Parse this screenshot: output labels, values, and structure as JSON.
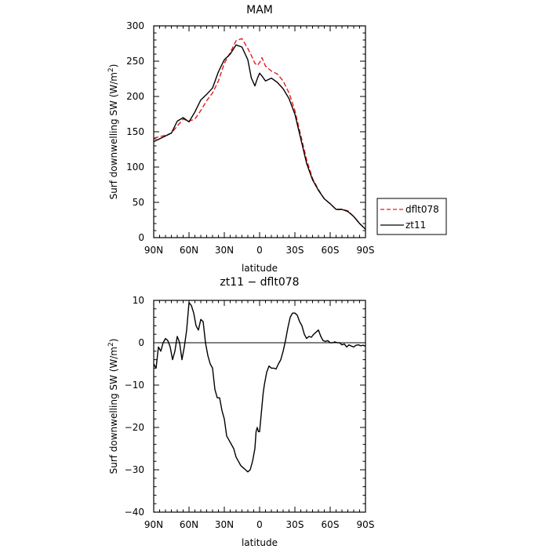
{
  "chart_data": [
    {
      "type": "line",
      "title": "MAM",
      "xlabel": "latitude",
      "ylabel": "Surf downwelling SW (W/m²)",
      "ylabel_main": "Surf downwelling SW (W/m",
      "ylabel_sup": "2",
      "ylabel_end": ")",
      "xlim": [
        90,
        -90
      ],
      "ylim": [
        0,
        300
      ],
      "xticks": [
        90,
        60,
        30,
        0,
        -30,
        -60,
        -90
      ],
      "xtick_labels": [
        "90N",
        "60N",
        "30N",
        "0",
        "30S",
        "60S",
        "90S"
      ],
      "yticks": [
        0,
        50,
        100,
        150,
        200,
        250,
        300
      ],
      "ytick_labels": [
        "0",
        "50",
        "100",
        "150",
        "200",
        "250",
        "300"
      ],
      "legend_position": "right",
      "series": [
        {
          "name": "dflt078",
          "color": "#e8191d",
          "dash": "dashed",
          "x": [
            90,
            85,
            80,
            75,
            70,
            65,
            60,
            55,
            50,
            45,
            40,
            35,
            30,
            25,
            20,
            15,
            10,
            7,
            4,
            2,
            0,
            -2,
            -5,
            -10,
            -15,
            -20,
            -25,
            -30,
            -35,
            -40,
            -45,
            -50,
            -55,
            -60,
            -65,
            -70,
            -75,
            -80,
            -85,
            -90
          ],
          "y": [
            141,
            143,
            145,
            148,
            158,
            168,
            165,
            168,
            180,
            194,
            205,
            222,
            247,
            262,
            279,
            282,
            268,
            258,
            247,
            244,
            248,
            255,
            243,
            236,
            232,
            222,
            205,
            180,
            145,
            110,
            84,
            68,
            55,
            48,
            40,
            40,
            38,
            30,
            20,
            12
          ]
        },
        {
          "name": "zt11",
          "color": "#000000",
          "dash": "solid",
          "x": [
            90,
            85,
            80,
            75,
            70,
            65,
            60,
            55,
            50,
            45,
            40,
            35,
            30,
            25,
            20,
            15,
            10,
            7,
            4,
            2,
            0,
            -2,
            -5,
            -10,
            -15,
            -20,
            -25,
            -30,
            -35,
            -40,
            -45,
            -50,
            -55,
            -60,
            -65,
            -70,
            -75,
            -80,
            -85,
            -90
          ],
          "y": [
            136,
            140,
            144,
            148,
            165,
            170,
            164,
            178,
            195,
            203,
            212,
            235,
            252,
            260,
            273,
            270,
            252,
            226,
            215,
            225,
            233,
            229,
            222,
            226,
            220,
            211,
            197,
            175,
            140,
            105,
            82,
            67,
            55,
            48,
            40,
            40,
            37,
            30,
            20,
            12
          ]
        }
      ]
    },
    {
      "type": "line",
      "title": "zt11 − dflt078",
      "xlabel": "latitude",
      "ylabel": "Surf downwelling SW (W/m²)",
      "ylabel_main": "Surf downwelling SW (W/m",
      "ylabel_sup": "2",
      "ylabel_end": ")",
      "xlim": [
        90,
        -90
      ],
      "ylim": [
        -40,
        10
      ],
      "xticks": [
        90,
        60,
        30,
        0,
        -30,
        -60,
        -90
      ],
      "xtick_labels": [
        "90N",
        "60N",
        "30N",
        "0",
        "30S",
        "60S",
        "90S"
      ],
      "yticks": [
        -40,
        -30,
        -20,
        -10,
        0,
        10
      ],
      "ytick_labels": [
        "−40",
        "−30",
        "−20",
        "−10",
        "0",
        "10"
      ],
      "zero_line": true,
      "series": [
        {
          "name": "",
          "color": "#000000",
          "dash": "solid",
          "x": [
            90,
            88,
            86,
            84,
            82,
            80,
            78,
            76,
            74,
            72,
            70,
            68,
            66,
            64,
            62,
            60,
            58,
            56,
            54,
            52,
            50,
            48,
            46,
            44,
            42,
            40,
            38,
            36,
            34,
            32,
            30,
            28,
            26,
            24,
            22,
            20,
            18,
            16,
            14,
            12,
            10,
            8,
            6,
            4,
            3,
            2,
            1,
            0,
            -1,
            -2,
            -3,
            -4,
            -6,
            -8,
            -10,
            -12,
            -14,
            -16,
            -18,
            -20,
            -22,
            -24,
            -26,
            -28,
            -30,
            -32,
            -34,
            -36,
            -38,
            -40,
            -42,
            -44,
            -46,
            -48,
            -50,
            -52,
            -54,
            -56,
            -58,
            -60,
            -62,
            -64,
            -66,
            -68,
            -70,
            -72,
            -74,
            -76,
            -78,
            -80,
            -82,
            -84,
            -86,
            -88,
            -90
          ],
          "y": [
            -5,
            -6,
            -1,
            -2,
            0,
            1,
            0.5,
            -1,
            -4,
            -2,
            1.5,
            0,
            -4,
            -1,
            3,
            9.5,
            8.8,
            7,
            4,
            3,
            5.5,
            5,
            0,
            -3,
            -5,
            -6,
            -11,
            -13,
            -13,
            -16,
            -18,
            -22,
            -23,
            -24,
            -25,
            -27,
            -28,
            -29,
            -29.5,
            -30,
            -30.5,
            -30,
            -28,
            -25,
            -21,
            -20,
            -21,
            -21,
            -18,
            -15,
            -12,
            -10,
            -7,
            -5.5,
            -6,
            -6,
            -6.2,
            -5,
            -4,
            -2,
            0.5,
            3.5,
            6,
            7,
            7,
            6.5,
            5,
            4,
            2,
            1,
            1.5,
            1.3,
            2,
            2.5,
            3,
            1.5,
            0.5,
            0.3,
            0.5,
            0,
            0,
            0.2,
            0,
            0,
            -0.5,
            -0.3,
            -1,
            -0.5,
            -0.8,
            -1,
            -0.6,
            -0.5,
            -0.7,
            -0.6,
            -0.8
          ]
        }
      ]
    }
  ]
}
